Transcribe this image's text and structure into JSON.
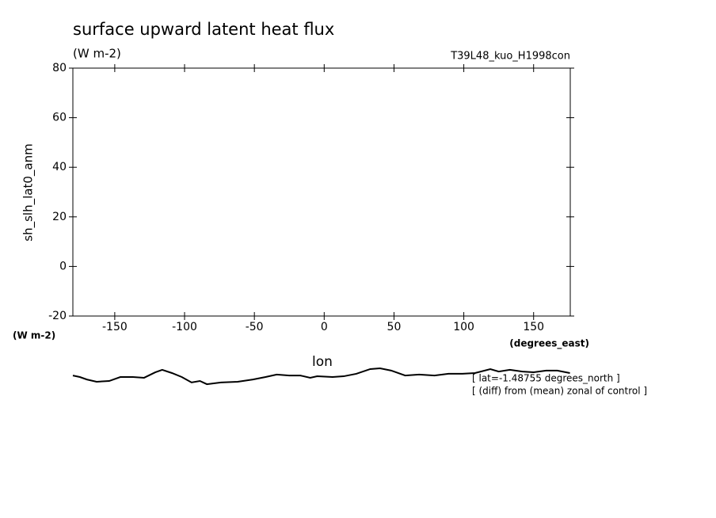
{
  "chart_data": {
    "type": "line",
    "title": "surface upward latent heat flux",
    "units_top": "(W m-2)",
    "dataset": "T39L48_kuo_H1998con",
    "y_label": "sh_slh_lat0_anm",
    "y_units": "(W m-2)",
    "x_units": "(degrees_east)",
    "x_label": "lon",
    "notes": [
      "[ lat=-1.48755 degrees_north ]",
      "[ (diff) from (mean) zonal of control ]"
    ],
    "xlim": [
      -180,
      176.25
    ],
    "xticks": [
      -150,
      -100,
      -50,
      0,
      50,
      100,
      150
    ],
    "ylim": [
      -20,
      80
    ],
    "yticks": [
      -20,
      0,
      20,
      40,
      60,
      80
    ],
    "x": [
      -180,
      -175,
      -170,
      -163,
      -154,
      -146,
      -137,
      -129,
      -121,
      -116,
      -109,
      -102,
      -95,
      -89,
      -84,
      -74,
      -62,
      -51,
      -42,
      -34,
      -25,
      -17,
      -10,
      -5,
      6,
      14,
      23,
      33,
      40,
      48,
      58,
      68,
      79,
      89,
      99,
      108,
      119,
      125,
      133,
      142,
      150,
      159,
      167,
      176
    ],
    "series": [
      {
        "color": "#000000",
        "values": [
          -44.0,
          -44.6,
          -45.6,
          -46.5,
          -46.2,
          -44.6,
          -44.6,
          -44.9,
          -42.7,
          -41.7,
          -43.0,
          -44.6,
          -46.8,
          -46.2,
          -47.5,
          -46.8,
          -46.5,
          -45.6,
          -44.6,
          -43.6,
          -44.0,
          -44.0,
          -44.9,
          -44.3,
          -44.6,
          -44.3,
          -43.3,
          -41.4,
          -41.1,
          -42.0,
          -44.0,
          -43.6,
          -44.0,
          -43.3,
          -43.3,
          -43.0,
          -41.4,
          -42.4,
          -41.7,
          -42.4,
          -42.7,
          -42.0,
          -42.0,
          -43.0
        ]
      }
    ]
  }
}
